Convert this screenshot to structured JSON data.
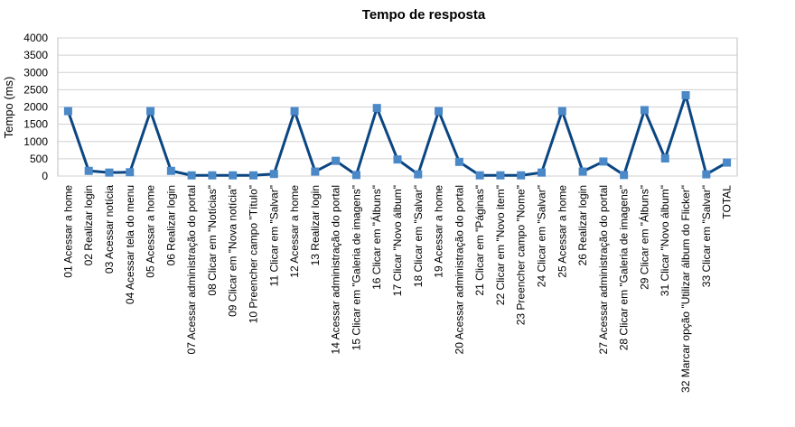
{
  "chart_data": {
    "type": "line",
    "title": "Tempo de resposta",
    "xlabel": "",
    "ylabel": "Tempo (ms)",
    "ylim": [
      0,
      4000
    ],
    "yticks": [
      0,
      500,
      1000,
      1500,
      2000,
      2500,
      3000,
      3500,
      4000
    ],
    "grid": true,
    "legend": "none",
    "categories": [
      "01 Acessar a home",
      "02 Realizar login",
      "03 Acessar notícia",
      "04 Acessar tela do menu",
      "05 Acessar a home",
      "06 Realizar login",
      "07 Acessar administração do portal",
      "08 Clicar em \"Notícias\"",
      "09 Clicar em \"Nova notícia\"",
      "10 Preencher campo \"Título\"",
      "11 Clicar em \"Salvar\"",
      "12 Acessar a home",
      "13 Realizar login",
      "14 Acessar administração do portal",
      "15 Clicar em \"Galeria de imagens\"",
      "16 Clicar em \"Álbuns\"",
      "17 Clicar \"Novo álbum\"",
      "18 Clicar em \"Salvar\"",
      "19 Acessar a home",
      "20 Acessar administração do portal",
      "21 Clicar em \"Páginas\"",
      "22 Clicar em \"Novo item\"",
      "23 Preencher campo \"Nome\"",
      "24 Clicar em \"Salvar\"",
      "25 Acessar a home",
      "26 Realizar login",
      "27 Acessar administração do portal",
      "28 Clicar em \"Galeria de imagens\"",
      "29 Clicar em \"Álbuns\"",
      "31 Clicar \"Novo álbum\"",
      "32 Marcar opção \"Utilizar álbum do Flicker\"",
      "33 Clicar em \"Salvar\"",
      "TOTAL"
    ],
    "series": [
      {
        "values": [
          1880,
          150,
          100,
          110,
          1880,
          150,
          20,
          20,
          20,
          20,
          60,
          1880,
          130,
          440,
          30,
          1970,
          480,
          50,
          1880,
          410,
          20,
          20,
          20,
          100,
          1880,
          130,
          420,
          30,
          1910,
          510,
          2340,
          50,
          390
        ],
        "color": "#0b4682",
        "marker_color": "#4a88c8"
      }
    ]
  }
}
